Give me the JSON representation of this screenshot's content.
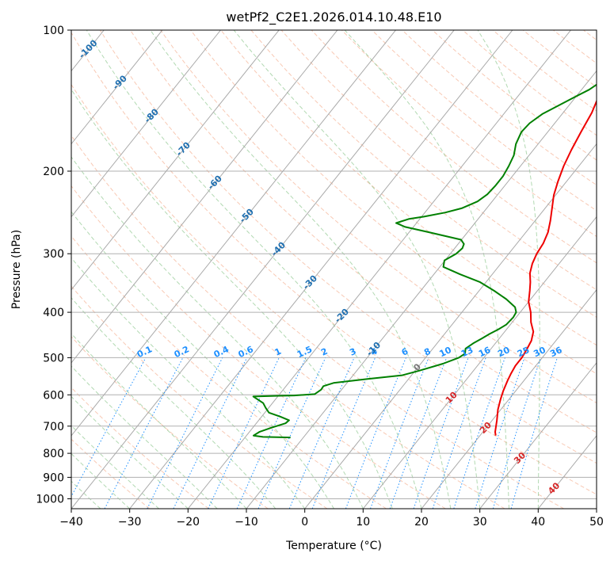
{
  "chart_data": {
    "type": "line",
    "title": "wetPf2_C2E1.2026.014.10.48.E10",
    "xlabel": "Temperature (°C)",
    "ylabel": "Pressure (hPa)",
    "xlim": [
      -40,
      50
    ],
    "ylim": [
      1050,
      100
    ],
    "y_scale": "log",
    "x_ticks": [
      -40,
      -30,
      -20,
      -10,
      0,
      10,
      20,
      30,
      40,
      50
    ],
    "y_ticks": [
      100,
      200,
      300,
      400,
      500,
      600,
      700,
      800,
      900,
      1000
    ],
    "grid": true,
    "skew_isotherms_c": [
      -100,
      -90,
      -80,
      -70,
      -60,
      -50,
      -40,
      -30,
      -20,
      -10,
      0,
      10,
      20,
      30,
      40
    ],
    "mixing_ratio_labels": [
      "0.1",
      "0.2",
      "0.4",
      "0.6",
      "1",
      "1.5",
      "2",
      "3",
      "4",
      "6",
      "8",
      "10",
      "13",
      "16",
      "20",
      "25",
      "30",
      "36"
    ],
    "mixing_ratio_values": [
      0.1,
      0.2,
      0.4,
      0.6,
      1,
      1.5,
      2,
      3,
      4,
      6,
      8,
      10,
      13,
      16,
      20,
      25,
      30,
      36
    ],
    "series": [
      {
        "color": "#ee0000",
        "points": [
          [
            22.7,
            733
          ],
          [
            22.1,
            720
          ],
          [
            20.8,
            680
          ],
          [
            19.5,
            645
          ],
          [
            18.6,
            615
          ],
          [
            17.9,
            590
          ],
          [
            17.2,
            560
          ],
          [
            16.8,
            540
          ],
          [
            16.5,
            520
          ],
          [
            16.5,
            500
          ],
          [
            16.2,
            480
          ],
          [
            15.8,
            460
          ],
          [
            14.9,
            440
          ],
          [
            13.2,
            420
          ],
          [
            11.8,
            400
          ],
          [
            10.0,
            380
          ],
          [
            8.7,
            360
          ],
          [
            7.6,
            345
          ],
          [
            6.3,
            330
          ],
          [
            5.4,
            315
          ],
          [
            4.8,
            300
          ],
          [
            4.5,
            285
          ],
          [
            3.8,
            270
          ],
          [
            2.6,
            255
          ],
          [
            1.2,
            240
          ],
          [
            -0.3,
            225
          ],
          [
            -1.5,
            210
          ],
          [
            -2.6,
            195
          ],
          [
            -3.5,
            180
          ],
          [
            -4.3,
            165
          ],
          [
            -5.1,
            150
          ],
          [
            -6.2,
            138
          ],
          [
            -7.3,
            128
          ],
          [
            -8.6,
            118
          ],
          [
            -10.1,
            110
          ],
          [
            -11.6,
            104
          ],
          [
            -12.6,
            100
          ]
        ]
      },
      {
        "color": "#008000",
        "points": [
          [
            -12.2,
            740
          ],
          [
            -14.5,
            739
          ],
          [
            -17.0,
            738
          ],
          [
            -18.8,
            733
          ],
          [
            -18.3,
            720
          ],
          [
            -16.8,
            705
          ],
          [
            -15.0,
            690
          ],
          [
            -14.8,
            680
          ],
          [
            -16.8,
            668
          ],
          [
            -19.3,
            655
          ],
          [
            -20.5,
            640
          ],
          [
            -21.6,
            625
          ],
          [
            -24.2,
            605
          ],
          [
            -20.0,
            603
          ],
          [
            -17.3,
            602
          ],
          [
            -14.0,
            598
          ],
          [
            -13.5,
            585
          ],
          [
            -13.6,
            575
          ],
          [
            -12.3,
            566
          ],
          [
            -7.0,
            555
          ],
          [
            -1.6,
            545
          ],
          [
            0.7,
            533
          ],
          [
            3.8,
            515
          ],
          [
            5.7,
            500
          ],
          [
            6.2,
            490
          ],
          [
            5.6,
            478
          ],
          [
            6.2,
            466
          ],
          [
            7.0,
            455
          ],
          [
            7.7,
            445
          ],
          [
            8.6,
            435
          ],
          [
            9.3,
            425
          ],
          [
            9.5,
            410
          ],
          [
            9.3,
            400
          ],
          [
            8.4,
            390
          ],
          [
            5.8,
            375
          ],
          [
            2.6,
            360
          ],
          [
            -1.0,
            345
          ],
          [
            -5.5,
            332
          ],
          [
            -9.4,
            320
          ],
          [
            -10.1,
            310
          ],
          [
            -9.0,
            300
          ],
          [
            -8.7,
            292
          ],
          [
            -9.0,
            286
          ],
          [
            -10.1,
            280
          ],
          [
            -16.6,
            270
          ],
          [
            -21.4,
            263
          ],
          [
            -23.5,
            258
          ],
          [
            -21.9,
            253
          ],
          [
            -19.6,
            250
          ],
          [
            -16.5,
            245
          ],
          [
            -14.3,
            240
          ],
          [
            -12.5,
            232
          ],
          [
            -11.8,
            224
          ],
          [
            -11.6,
            215
          ],
          [
            -11.6,
            205
          ],
          [
            -12.0,
            195
          ],
          [
            -12.6,
            185
          ],
          [
            -13.8,
            175
          ],
          [
            -14.5,
            165
          ],
          [
            -14.3,
            158
          ],
          [
            -13.4,
            151
          ],
          [
            -11.8,
            145
          ],
          [
            -10.2,
            139
          ],
          [
            -8.7,
            134
          ],
          [
            -7.8,
            129
          ],
          [
            -7.0,
            124
          ],
          [
            -6.4,
            118
          ],
          [
            -6.1,
            112
          ],
          [
            -5.6,
            106
          ],
          [
            -4.8,
            100
          ]
        ]
      }
    ]
  }
}
